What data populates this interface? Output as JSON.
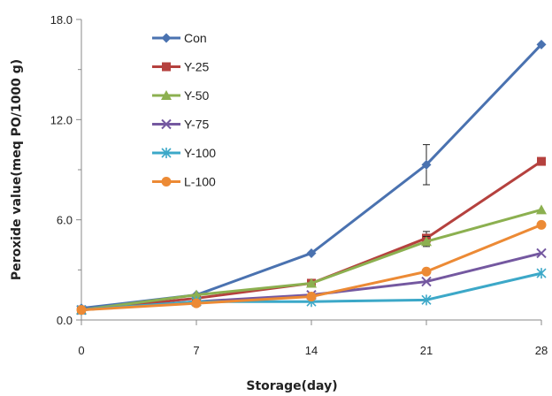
{
  "chart_data": {
    "type": "line",
    "xlabel": "Storage(day)",
    "ylabel": "Peroxide value(meq PO/1000 g)",
    "x": [
      0,
      7,
      14,
      21,
      28
    ],
    "x_tick_labels": [
      "0",
      "7",
      "14",
      "21",
      "28"
    ],
    "xlim": [
      0,
      28
    ],
    "y_ticks": [
      0,
      6,
      12,
      18
    ],
    "y_tick_labels": [
      "0.0",
      "6.0",
      "12.0",
      "18.0"
    ],
    "ylim": [
      0,
      18
    ],
    "grid": false,
    "legend_position": "top-left",
    "series": [
      {
        "name": "Con",
        "color": "#4a72b0",
        "marker": "diamond",
        "values": [
          0.7,
          1.5,
          4.0,
          9.3,
          16.5
        ],
        "errors": [
          0,
          0,
          0,
          1.2,
          0
        ]
      },
      {
        "name": "Y-25",
        "color": "#b5413e",
        "marker": "square",
        "values": [
          0.6,
          1.3,
          2.2,
          4.9,
          9.5
        ],
        "errors": [
          0,
          0,
          0,
          0.4,
          0
        ]
      },
      {
        "name": "Y-50",
        "color": "#8cb050",
        "marker": "triangle",
        "values": [
          0.6,
          1.5,
          2.2,
          4.7,
          6.6
        ],
        "errors": [
          0,
          0,
          0,
          0.3,
          0
        ]
      },
      {
        "name": "Y-75",
        "color": "#7458a0",
        "marker": "x",
        "values": [
          0.6,
          1.1,
          1.5,
          2.3,
          4.0
        ],
        "errors": [
          0,
          0,
          0,
          0,
          0
        ]
      },
      {
        "name": "Y-100",
        "color": "#3ca8c8",
        "marker": "asterisk",
        "values": [
          0.6,
          1.1,
          1.1,
          1.2,
          2.8
        ],
        "errors": [
          0,
          0,
          0,
          0,
          0
        ]
      },
      {
        "name": "L-100",
        "color": "#ec8a35",
        "marker": "circle",
        "values": [
          0.6,
          1.0,
          1.4,
          2.9,
          5.7
        ],
        "errors": [
          0,
          0,
          0,
          0,
          0
        ]
      }
    ]
  }
}
